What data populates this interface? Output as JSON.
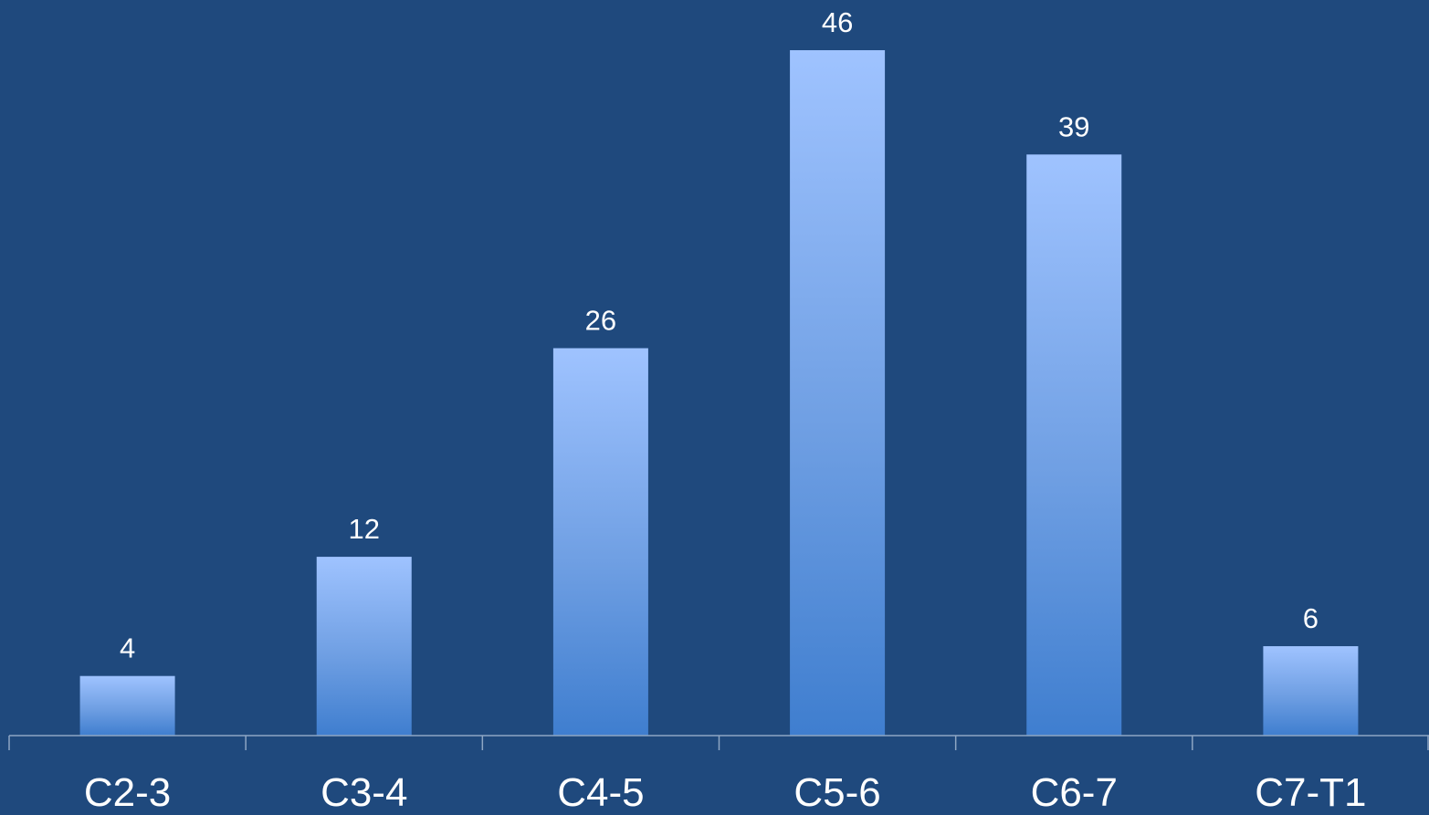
{
  "colors": {
    "background": "#1f497d",
    "bar_top": "#9fc3ff",
    "bar_bottom": "#3f7ecf",
    "axis": "#8ea6c4",
    "text": "#ffffff"
  },
  "chart_data": {
    "type": "bar",
    "title": "",
    "xlabel": "",
    "ylabel": "",
    "categories": [
      "C2-3",
      "C3-4",
      "C4-5",
      "C5-6",
      "C6-7",
      "C7-T1"
    ],
    "values": [
      4,
      12,
      26,
      46,
      39,
      6
    ],
    "data_labels": [
      "4",
      "12",
      "26",
      "46",
      "39",
      "6"
    ],
    "ylim": [
      0,
      46
    ],
    "grid": false,
    "legend": "none"
  }
}
